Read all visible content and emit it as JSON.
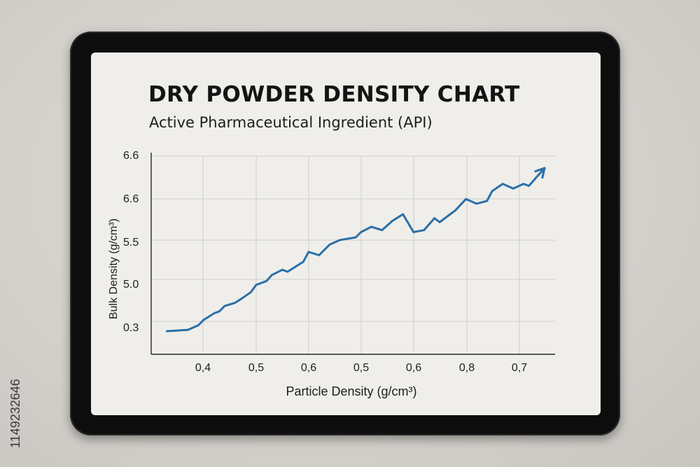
{
  "watermark": "1149232646",
  "chart_data": {
    "type": "line",
    "title": "DRY POWDER DENSITY CHART",
    "subtitle": "Active Pharmaceutical Ingredient (API)",
    "xlabel": "Particle Density (g/cm³)",
    "ylabel": "Bulk Density (g/cm³)",
    "x_tick_labels": [
      "0,4",
      "0,5",
      "0,6",
      "0,5",
      "0,6",
      "0,8",
      "0,7"
    ],
    "y_tick_labels": [
      "0.3",
      "5.0",
      "5.5",
      "6.6",
      "6.6"
    ],
    "grid": true,
    "line_color": "#2a6fa8",
    "end_marker": "arrow",
    "series": [
      {
        "x": [
          0.33,
          0.37,
          0.39,
          0.4,
          0.42,
          0.43,
          0.44,
          0.46,
          0.47,
          0.49,
          0.5,
          0.52,
          0.53,
          0.55,
          0.56,
          0.59,
          0.6,
          0.62,
          0.64,
          0.66,
          0.69,
          0.7,
          0.72,
          0.74,
          0.76,
          0.77,
          0.78,
          0.8,
          0.82,
          0.84,
          0.85,
          0.87,
          0.88,
          0.9,
          0.92,
          0.94,
          0.95,
          0.97,
          0.99,
          1.01,
          1.02,
          1.05
        ],
        "y": [
          0.35,
          0.37,
          0.44,
          0.52,
          0.62,
          0.65,
          0.73,
          0.78,
          0.83,
          0.94,
          1.05,
          1.11,
          1.2,
          1.28,
          1.25,
          1.4,
          1.55,
          1.5,
          1.66,
          1.73,
          1.77,
          1.85,
          1.93,
          1.88,
          2.02,
          2.07,
          2.12,
          1.85,
          1.88,
          2.06,
          2.0,
          2.12,
          2.18,
          2.35,
          2.28,
          2.32,
          2.47,
          2.58,
          2.51,
          2.58,
          2.55,
          2.82
        ]
      }
    ],
    "xlim": [
      0.3,
      1.07
    ],
    "ylim": [
      0,
      3
    ]
  }
}
